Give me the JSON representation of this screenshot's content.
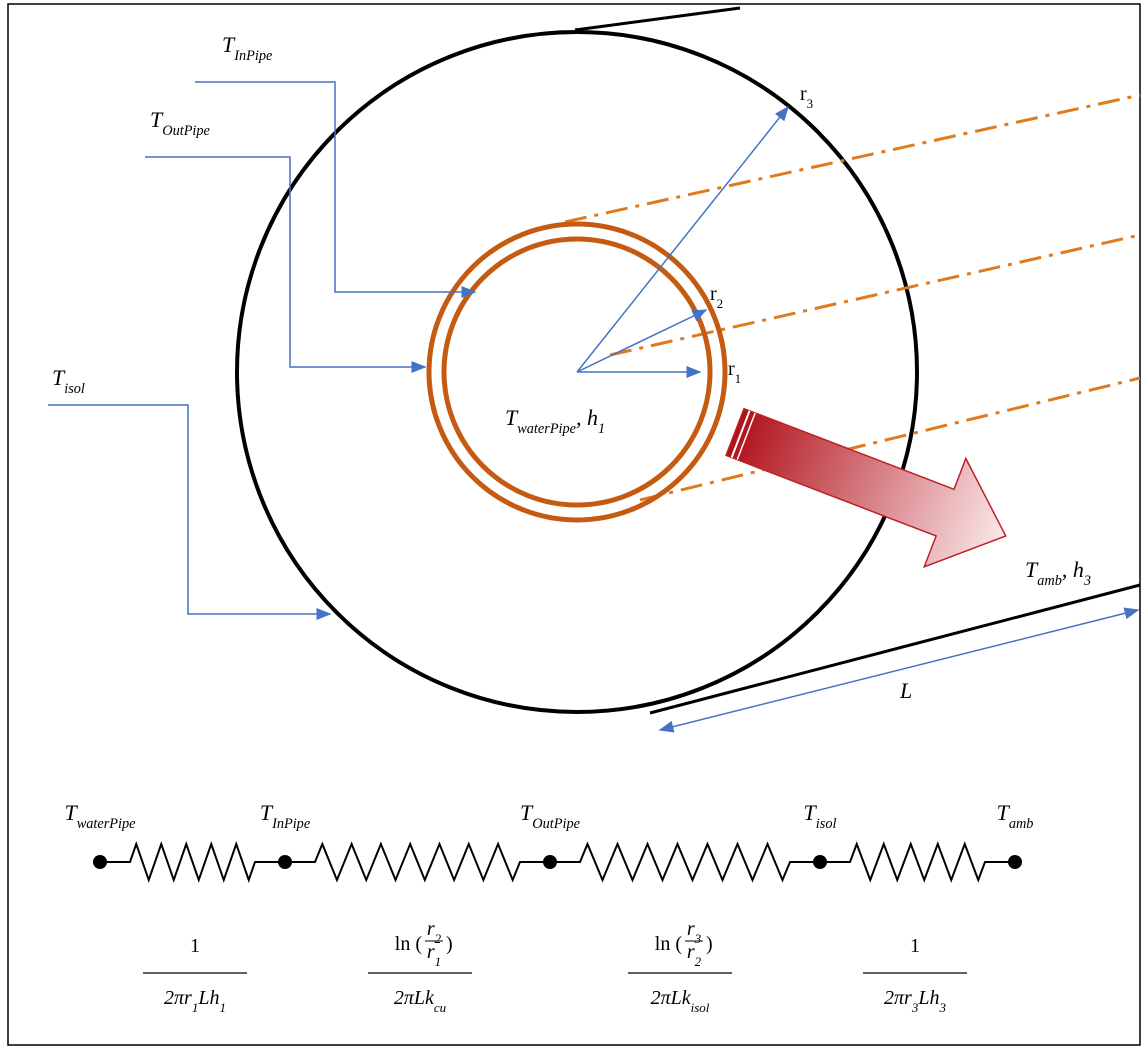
{
  "diagram": {
    "pipe_labels": [
      [
        {
          "t": "T",
          "sub": "InPipe"
        }
      ],
      [
        {
          "t": "T",
          "sub": "OutPipe"
        }
      ],
      [
        {
          "t": "T",
          "sub": "isol"
        }
      ]
    ],
    "radius_labels": [
      [
        {
          "t": "r",
          "sub": "3"
        }
      ],
      [
        {
          "t": "r",
          "sub": "2"
        }
      ],
      [
        {
          "t": "r",
          "sub": "1"
        }
      ]
    ],
    "center_label": [
      {
        "t": "T",
        "sub": "waterPipe"
      },
      {
        "t": ", h",
        "sub": "1"
      }
    ],
    "ambient_label": [
      {
        "t": "T",
        "sub": "amb"
      },
      {
        "t": ", h",
        "sub": "3"
      }
    ],
    "length_label": "L"
  },
  "circuit": {
    "nodes": [
      [
        {
          "t": "T",
          "sub": "waterPipe"
        }
      ],
      [
        {
          "t": "T",
          "sub": "InPipe"
        }
      ],
      [
        {
          "t": "T",
          "sub": "OutPipe"
        }
      ],
      [
        {
          "t": "T",
          "sub": "isol"
        }
      ],
      [
        {
          "t": "T",
          "sub": "amb"
        }
      ]
    ],
    "resistances": [
      {
        "numerator": "1",
        "denominator": [
          {
            "t": "2πr",
            "sub": "1"
          },
          {
            "t": "Lh",
            "sub": "1"
          }
        ]
      },
      {
        "numerator": {
          "fn": "ln (",
          "num": [
            {
              "t": "r",
              "sub": "2"
            }
          ],
          "den": [
            {
              "t": "r",
              "sub": "1"
            }
          ],
          "close": ")"
        },
        "denominator": [
          {
            "t": "2πLk",
            "sub": "cu"
          }
        ]
      },
      {
        "numerator": {
          "fn": "ln (",
          "num": [
            {
              "t": "r",
              "sub": "3"
            }
          ],
          "den": [
            {
              "t": "r",
              "sub": "2"
            }
          ],
          "close": ")"
        },
        "denominator": [
          {
            "t": "2πLk",
            "sub": "isol"
          }
        ]
      },
      {
        "numerator": "1",
        "denominator": [
          {
            "t": "2πr",
            "sub": "3"
          },
          {
            "t": "Lh",
            "sub": "3"
          }
        ]
      }
    ]
  }
}
